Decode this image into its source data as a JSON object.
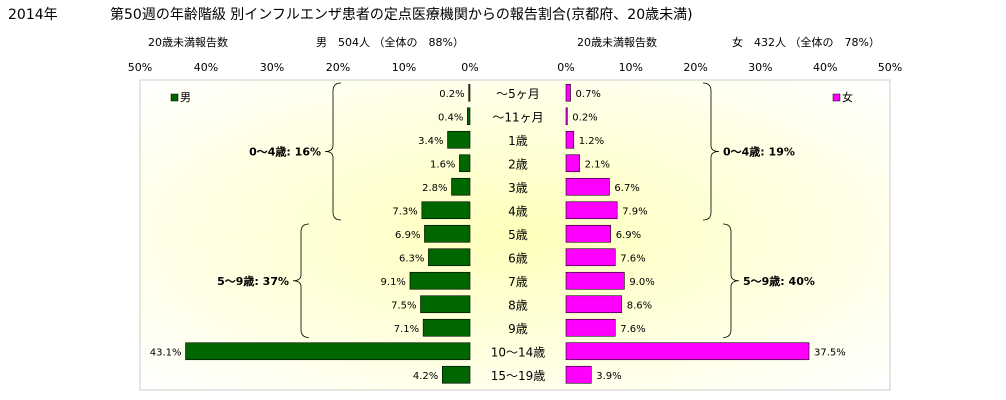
{
  "chart_data": {
    "type": "bar",
    "title": "第50週の年齢階級 別インフルエンザ患者の定点医療機関からの報告割合(京都府、20歳未満)",
    "year": "2014年",
    "left_panel": {
      "series_name": "男",
      "header_label": "20歳未満報告数",
      "header_value": "男　504人 （全体の　88%）",
      "axis_ticks": [
        "50%",
        "40%",
        "30%",
        "20%",
        "10%",
        "0%"
      ],
      "xlim": [
        0,
        50
      ],
      "color": "#006600",
      "values": [
        0.2,
        0.4,
        3.4,
        1.6,
        2.8,
        7.3,
        6.9,
        6.3,
        9.1,
        7.5,
        7.1,
        43.1,
        4.2
      ],
      "value_labels": [
        "0.2%",
        "0.4%",
        "3.4%",
        "1.6%",
        "2.8%",
        "7.3%",
        "6.9%",
        "6.3%",
        "9.1%",
        "7.5%",
        "7.1%",
        "43.1%",
        "4.2%"
      ],
      "groups": [
        {
          "label": "0～4歳: 16%",
          "from": 0,
          "to": 5
        },
        {
          "label": "5～9歳: 37%",
          "from": 6,
          "to": 10
        }
      ]
    },
    "right_panel": {
      "series_name": "女",
      "header_label": "20歳未満報告数",
      "header_value": "女　432人 （全体の　78%）",
      "axis_ticks": [
        "0%",
        "10%",
        "20%",
        "30%",
        "40%",
        "50%"
      ],
      "xlim": [
        0,
        50
      ],
      "color": "#ff00ff",
      "values": [
        0.7,
        0.2,
        1.2,
        2.1,
        6.7,
        7.9,
        6.9,
        7.6,
        9.0,
        8.6,
        7.6,
        37.5,
        3.9
      ],
      "value_labels": [
        "0.7%",
        "0.2%",
        "1.2%",
        "2.1%",
        "6.7%",
        "7.9%",
        "6.9%",
        "7.6%",
        "9.0%",
        "8.6%",
        "7.6%",
        "37.5%",
        "3.9%"
      ],
      "groups": [
        {
          "label": "0～4歳: 19%",
          "from": 0,
          "to": 5
        },
        {
          "label": "5～9歳: 40%",
          "from": 6,
          "to": 10
        }
      ]
    },
    "categories": [
      "～5ヶ月",
      "～11ヶ月",
      "1歳",
      "2歳",
      "3歳",
      "4歳",
      "5歳",
      "6歳",
      "7歳",
      "8歳",
      "9歳",
      "10～14歳",
      "15～19歳"
    ],
    "background_color": "#ffffcc"
  }
}
